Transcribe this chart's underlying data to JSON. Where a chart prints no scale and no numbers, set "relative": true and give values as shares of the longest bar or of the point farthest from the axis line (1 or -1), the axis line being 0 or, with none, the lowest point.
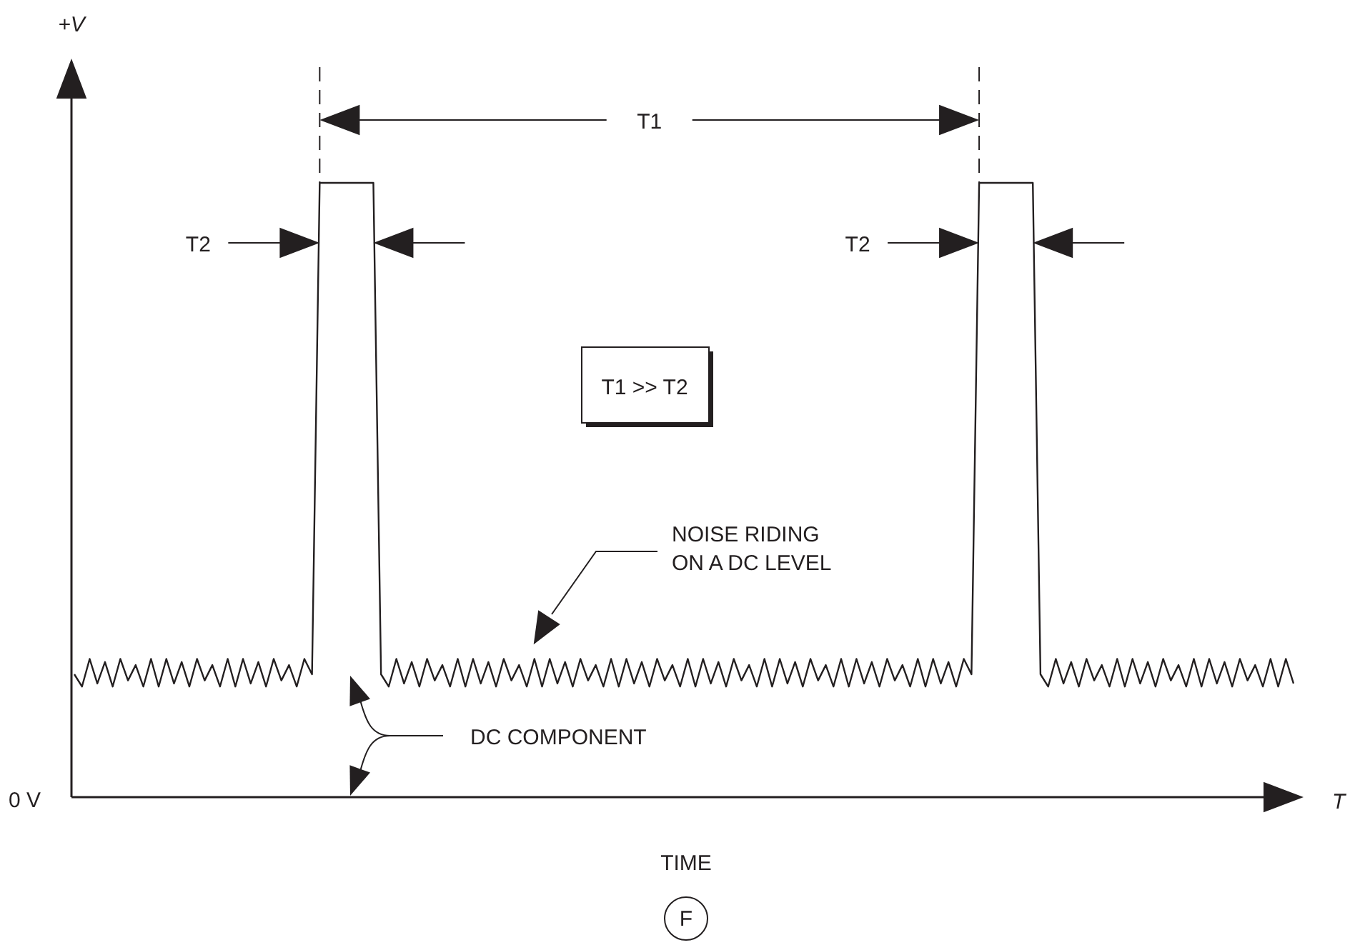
{
  "chart_data": {
    "type": "line",
    "relative": true,
    "xlabel": "TIME",
    "categories": [
      null,
      null,
      null,
      null,
      null,
      null,
      null,
      null,
      null,
      null,
      null,
      null,
      null,
      null,
      null,
      null,
      null,
      null,
      null,
      null,
      null,
      null,
      null,
      null,
      null,
      null,
      null,
      null,
      null,
      null,
      null,
      null,
      null,
      null,
      null,
      null,
      null,
      null,
      null,
      null,
      null,
      null,
      null,
      null,
      null,
      null,
      null,
      null,
      null,
      null,
      null,
      null,
      null,
      null,
      null,
      null,
      null,
      null,
      null,
      null,
      null,
      null,
      null,
      null,
      null,
      null,
      null,
      null,
      null,
      null,
      null,
      null,
      null,
      null,
      null,
      null,
      null,
      null,
      null,
      null,
      null,
      null,
      null,
      null,
      null,
      null,
      null,
      null,
      null,
      null,
      null,
      null,
      null,
      null,
      null,
      null,
      null,
      null,
      null,
      null,
      null,
      null,
      null,
      null,
      null,
      null,
      null,
      null,
      null,
      null,
      null,
      null,
      null,
      null,
      null,
      null,
      null,
      null,
      null,
      null,
      null,
      null,
      null,
      null,
      null,
      null,
      null,
      null,
      null,
      null,
      null,
      null,
      null,
      null,
      null,
      null,
      null,
      null,
      null,
      null,
      null,
      null,
      null,
      null,
      null,
      null,
      null,
      null,
      null,
      null,
      null,
      null,
      null,
      null,
      null,
      null,
      null,
      null,
      null,
      null
    ],
    "series": [
      {
        "color": "#231f20",
        "values": [
          0.2,
          0.18,
          0.225,
          0.185,
          0.22,
          0.18,
          0.225,
          0.19,
          0.215,
          0.18,
          0.225,
          0.18,
          0.225,
          0.185,
          0.22,
          0.18,
          0.225,
          0.19,
          0.215,
          0.18,
          0.225,
          0.18,
          0.225,
          0.185,
          0.22,
          0.18,
          0.225,
          0.19,
          0.215,
          0.18,
          0.225,
          0.2,
          1,
          1,
          1,
          1,
          1,
          1,
          1,
          1,
          0.2,
          0.18,
          0.225,
          0.185,
          0.22,
          0.18,
          0.225,
          0.19,
          0.215,
          0.18,
          0.225,
          0.18,
          0.225,
          0.185,
          0.22,
          0.18,
          0.225,
          0.19,
          0.215,
          0.18,
          0.225,
          0.18,
          0.225,
          0.185,
          0.22,
          0.18,
          0.225,
          0.19,
          0.215,
          0.18,
          0.225,
          0.18,
          0.225,
          0.185,
          0.22,
          0.18,
          0.225,
          0.19,
          0.215,
          0.18,
          0.225,
          0.18,
          0.225,
          0.185,
          0.22,
          0.18,
          0.225,
          0.19,
          0.215,
          0.18,
          0.225,
          0.18,
          0.225,
          0.185,
          0.22,
          0.18,
          0.225,
          0.19,
          0.215,
          0.18,
          0.225,
          0.18,
          0.225,
          0.185,
          0.22,
          0.18,
          0.225,
          0.19,
          0.215,
          0.18,
          0.225,
          0.18,
          0.225,
          0.185,
          0.22,
          0.18,
          0.225,
          0.2,
          1,
          1,
          1,
          1,
          1,
          1,
          1,
          1,
          0.2,
          0.18,
          0.225,
          0.185,
          0.22,
          0.18,
          0.225,
          0.19,
          0.215,
          0.18,
          0.225,
          0.18,
          0.225,
          0.185,
          0.22,
          0.18,
          0.225,
          0.19,
          0.215,
          0.18,
          0.225,
          0.18,
          0.225,
          0.185,
          0.22,
          0.18,
          0.225,
          0.19,
          0.215,
          0.18,
          0.225,
          0.18,
          0.225,
          0.185
        ]
      }
    ],
    "annotations": [
      "+V",
      "T1",
      "T2",
      "T2",
      "T1 >> T2",
      "NOISE RIDING\nON A DC LEVEL",
      "DC COMPONENT",
      "0 V",
      "T",
      "F"
    ]
  }
}
